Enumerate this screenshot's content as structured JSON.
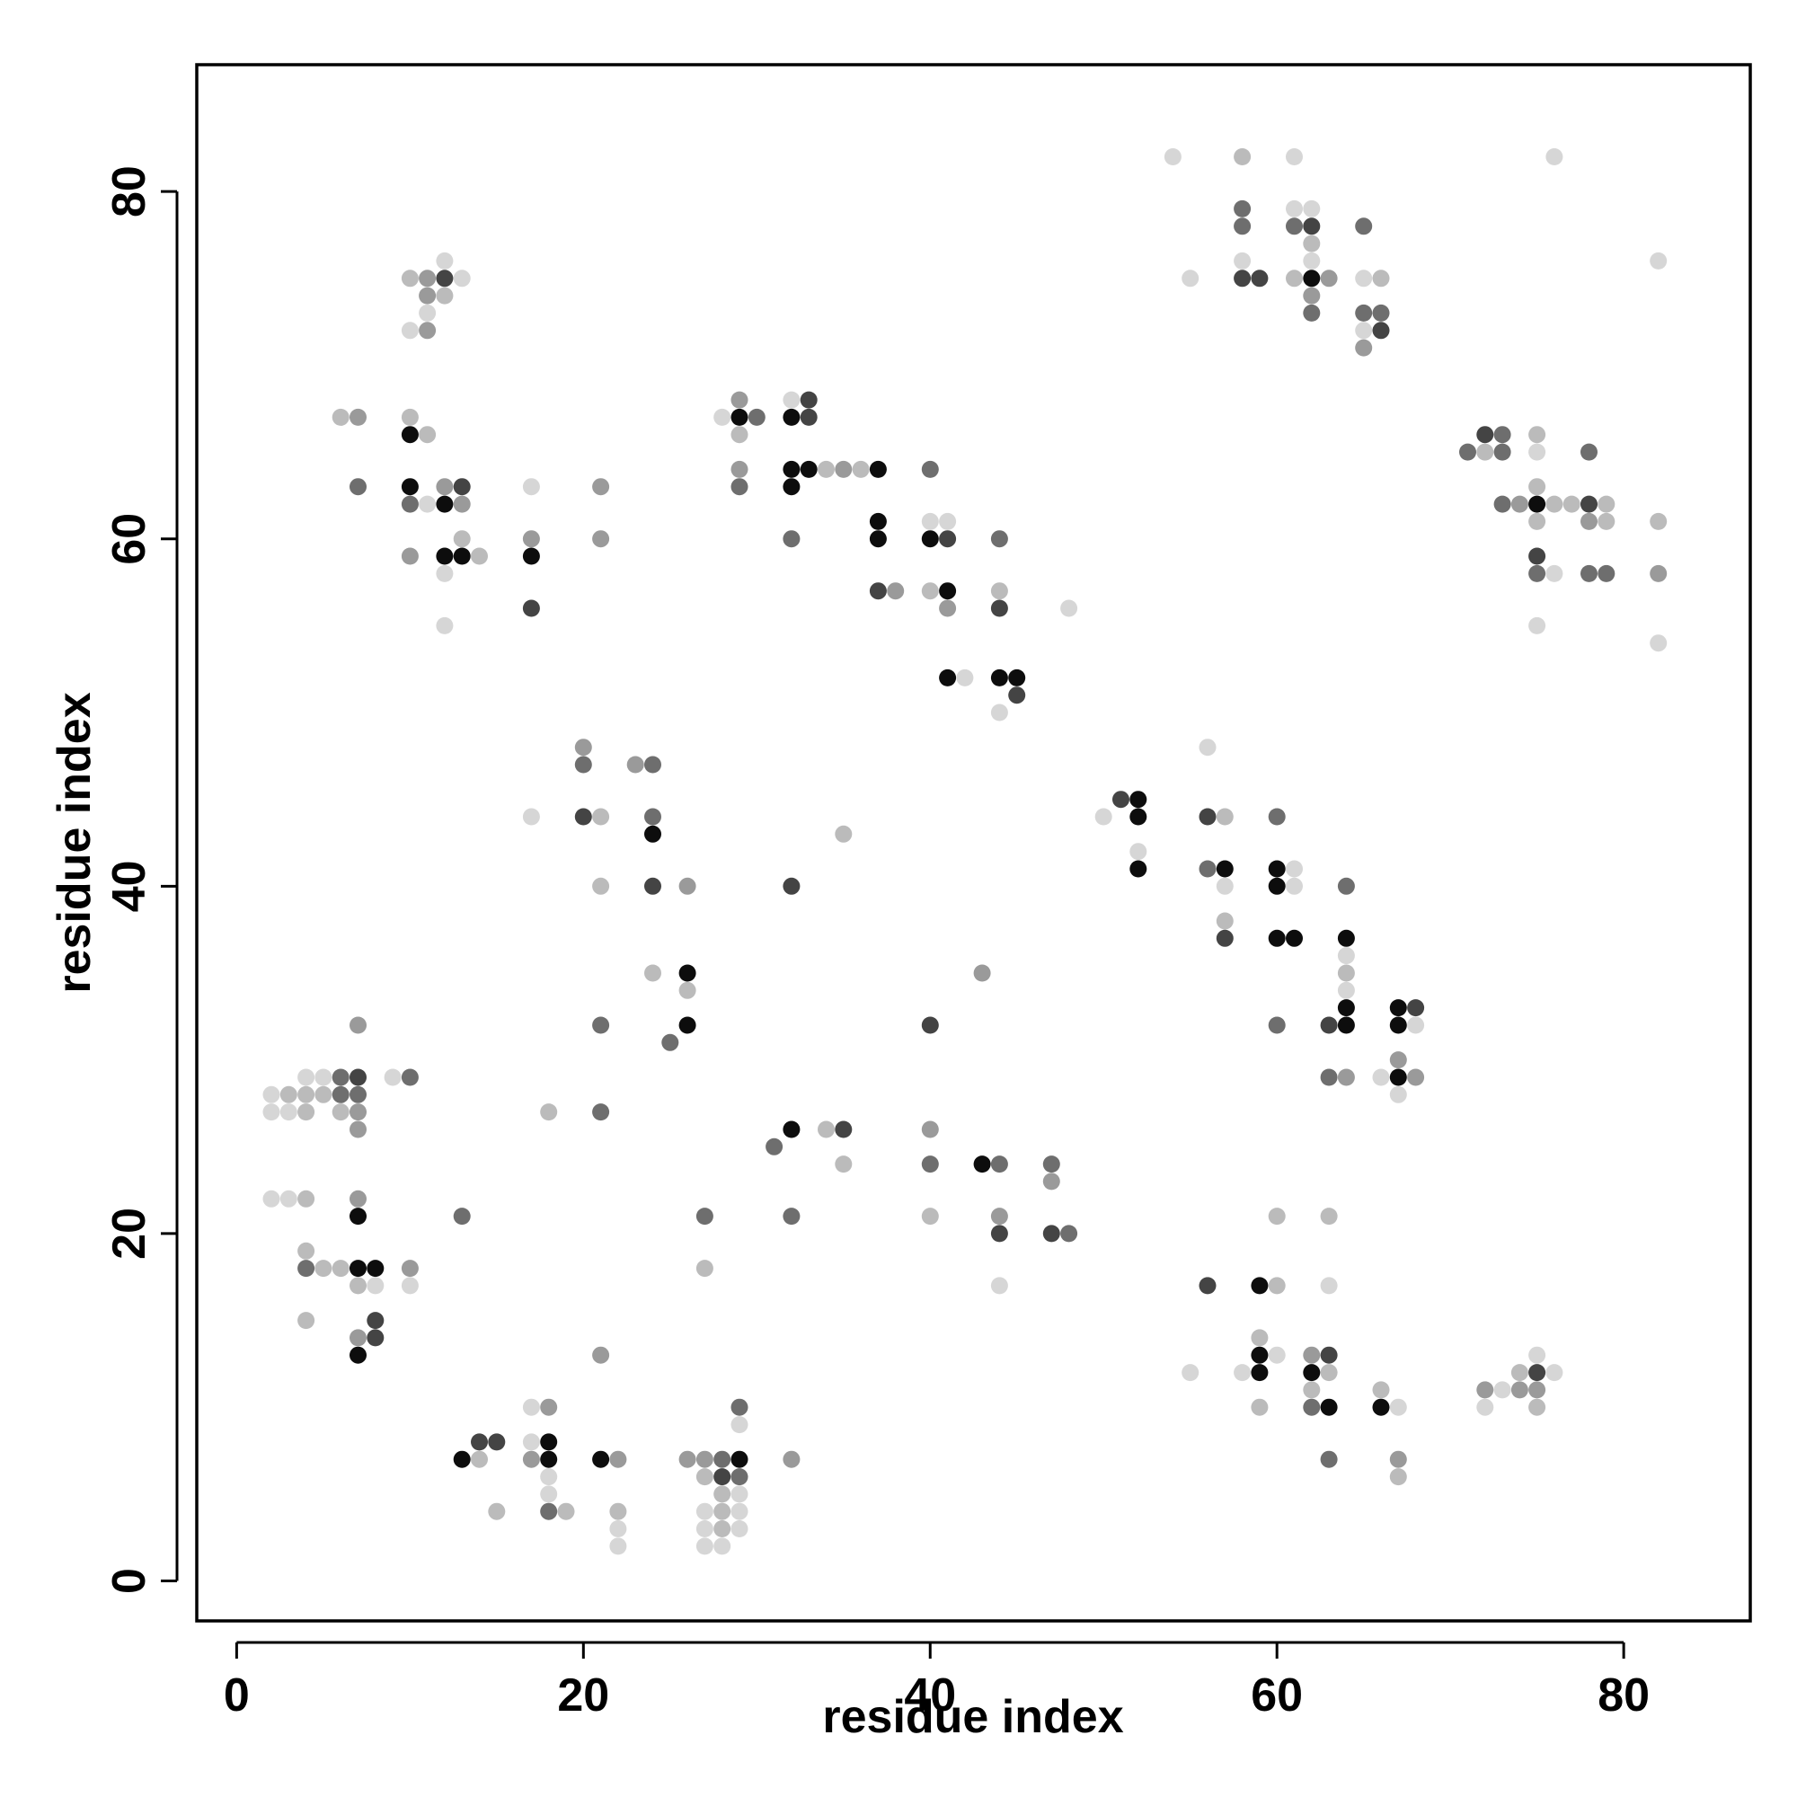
{
  "chart_data": {
    "type": "scatter",
    "title": "",
    "xlabel": "residue index",
    "ylabel": "residue index",
    "xlim": [
      -2.3,
      87.3
    ],
    "ylim": [
      -2.3,
      87.3
    ],
    "x_ticks": [
      0,
      20,
      40,
      60,
      80
    ],
    "y_ticks": [
      0,
      20,
      40,
      60,
      80
    ],
    "grid": false,
    "legend": "none",
    "shade_levels": {
      "1": "#d6d6d6",
      "2": "#bbbbbb",
      "3": "#9a9a9a",
      "4": "#6e6e6e",
      "5": "#444444",
      "6": "#0d0d0d"
    },
    "points": [
      [
        2,
        28,
        1
      ],
      [
        3,
        28,
        2
      ],
      [
        4,
        28,
        2
      ],
      [
        5,
        28,
        2
      ],
      [
        6,
        28,
        4
      ],
      [
        7,
        28,
        4
      ],
      [
        4,
        29,
        1
      ],
      [
        5,
        29,
        1
      ],
      [
        6,
        29,
        4
      ],
      [
        7,
        29,
        5
      ],
      [
        9,
        29,
        1
      ],
      [
        10,
        29,
        4
      ],
      [
        2,
        27,
        1
      ],
      [
        3,
        27,
        1
      ],
      [
        4,
        27,
        2
      ],
      [
        6,
        27,
        2
      ],
      [
        7,
        27,
        3
      ],
      [
        7,
        26,
        3
      ],
      [
        7,
        32,
        3
      ],
      [
        2,
        22,
        1
      ],
      [
        3,
        22,
        1
      ],
      [
        4,
        22,
        2
      ],
      [
        7,
        22,
        3
      ],
      [
        7,
        21,
        6
      ],
      [
        13,
        21,
        4
      ],
      [
        4,
        19,
        2
      ],
      [
        4,
        18,
        4
      ],
      [
        5,
        18,
        2
      ],
      [
        6,
        18,
        2
      ],
      [
        7,
        18,
        6
      ],
      [
        8,
        18,
        6
      ],
      [
        10,
        18,
        3
      ],
      [
        7,
        17,
        2
      ],
      [
        8,
        17,
        1
      ],
      [
        10,
        17,
        1
      ],
      [
        4,
        15,
        2
      ],
      [
        8,
        15,
        5
      ],
      [
        7,
        14,
        3
      ],
      [
        8,
        14,
        5
      ],
      [
        7,
        13,
        6
      ],
      [
        13,
        7,
        6
      ],
      [
        14,
        7,
        2
      ],
      [
        14,
        8,
        5
      ],
      [
        15,
        8,
        5
      ],
      [
        15,
        4,
        2
      ],
      [
        17,
        10,
        1
      ],
      [
        18,
        10,
        3
      ],
      [
        17,
        8,
        1
      ],
      [
        18,
        8,
        6
      ],
      [
        17,
        7,
        3
      ],
      [
        18,
        7,
        6
      ],
      [
        18,
        6,
        1
      ],
      [
        18,
        5,
        1
      ],
      [
        18,
        4,
        4
      ],
      [
        19,
        4,
        2
      ],
      [
        21,
        7,
        6
      ],
      [
        22,
        7,
        3
      ],
      [
        22,
        4,
        2
      ],
      [
        22,
        3,
        1
      ],
      [
        22,
        2,
        1
      ],
      [
        21,
        13,
        3
      ],
      [
        26,
        7,
        3
      ],
      [
        27,
        7,
        3
      ],
      [
        28,
        7,
        4
      ],
      [
        29,
        7,
        6
      ],
      [
        27,
        6,
        2
      ],
      [
        28,
        6,
        5
      ],
      [
        29,
        6,
        4
      ],
      [
        27,
        4,
        1
      ],
      [
        28,
        4,
        2
      ],
      [
        29,
        4,
        1
      ],
      [
        27,
        3,
        1
      ],
      [
        28,
        3,
        2
      ],
      [
        29,
        3,
        1
      ],
      [
        27,
        2,
        1
      ],
      [
        28,
        2,
        1
      ],
      [
        28,
        5,
        2
      ],
      [
        29,
        5,
        1
      ],
      [
        29,
        9,
        1
      ],
      [
        29,
        10,
        4
      ],
      [
        32,
        7,
        3
      ],
      [
        17,
        44,
        1
      ],
      [
        20,
        48,
        3
      ],
      [
        20,
        47,
        4
      ],
      [
        20,
        44,
        5
      ],
      [
        21,
        44,
        2
      ],
      [
        21,
        40,
        2
      ],
      [
        23,
        47,
        3
      ],
      [
        24,
        47,
        4
      ],
      [
        24,
        44,
        4
      ],
      [
        24,
        43,
        6
      ],
      [
        24,
        40,
        5
      ],
      [
        26,
        40,
        3
      ],
      [
        24,
        35,
        2
      ],
      [
        26,
        35,
        6
      ],
      [
        26,
        34,
        2
      ],
      [
        26,
        32,
        6
      ],
      [
        25,
        31,
        4
      ],
      [
        21,
        32,
        4
      ],
      [
        21,
        27,
        4
      ],
      [
        18,
        27,
        2
      ],
      [
        27,
        21,
        4
      ],
      [
        27,
        18,
        2
      ],
      [
        31,
        25,
        4
      ],
      [
        32,
        26,
        6
      ],
      [
        34,
        26,
        2
      ],
      [
        35,
        26,
        5
      ],
      [
        35,
        24,
        2
      ],
      [
        32,
        21,
        4
      ],
      [
        32,
        40,
        5
      ],
      [
        35,
        43,
        2
      ],
      [
        40,
        26,
        3
      ],
      [
        40,
        24,
        4
      ],
      [
        43,
        24,
        6
      ],
      [
        44,
        24,
        4
      ],
      [
        44,
        21,
        3
      ],
      [
        44,
        20,
        5
      ],
      [
        40,
        21,
        2
      ],
      [
        44,
        17,
        1
      ],
      [
        47,
        24,
        4
      ],
      [
        47,
        23,
        3
      ],
      [
        47,
        20,
        5
      ],
      [
        48,
        20,
        4
      ],
      [
        40,
        32,
        5
      ],
      [
        43,
        35,
        3
      ],
      [
        6,
        67,
        2
      ],
      [
        7,
        67,
        3
      ],
      [
        7,
        63,
        4
      ],
      [
        10,
        67,
        2
      ],
      [
        10,
        66,
        6
      ],
      [
        11,
        66,
        2
      ],
      [
        10,
        63,
        6
      ],
      [
        10,
        62,
        4
      ],
      [
        11,
        62,
        1
      ],
      [
        12,
        63,
        3
      ],
      [
        12,
        62,
        6
      ],
      [
        13,
        63,
        5
      ],
      [
        13,
        62,
        3
      ],
      [
        12,
        59,
        6
      ],
      [
        13,
        59,
        6
      ],
      [
        14,
        59,
        2
      ],
      [
        10,
        59,
        3
      ],
      [
        12,
        58,
        1
      ],
      [
        13,
        60,
        2
      ],
      [
        12,
        55,
        1
      ],
      [
        10,
        75,
        2
      ],
      [
        11,
        75,
        3
      ],
      [
        12,
        75,
        5
      ],
      [
        13,
        75,
        1
      ],
      [
        12,
        76,
        1
      ],
      [
        11,
        74,
        3
      ],
      [
        12,
        74,
        2
      ],
      [
        11,
        73,
        1
      ],
      [
        10,
        72,
        1
      ],
      [
        11,
        72,
        3
      ],
      [
        17,
        63,
        1
      ],
      [
        17,
        60,
        3
      ],
      [
        17,
        59,
        6
      ],
      [
        17,
        56,
        5
      ],
      [
        21,
        63,
        3
      ],
      [
        21,
        60,
        3
      ],
      [
        28,
        67,
        1
      ],
      [
        29,
        67,
        6
      ],
      [
        30,
        67,
        4
      ],
      [
        29,
        68,
        3
      ],
      [
        29,
        66,
        2
      ],
      [
        29,
        64,
        3
      ],
      [
        29,
        63,
        4
      ],
      [
        32,
        68,
        1
      ],
      [
        33,
        68,
        5
      ],
      [
        32,
        67,
        6
      ],
      [
        33,
        67,
        5
      ],
      [
        32,
        64,
        6
      ],
      [
        33,
        64,
        6
      ],
      [
        32,
        63,
        6
      ],
      [
        34,
        64,
        2
      ],
      [
        35,
        64,
        3
      ],
      [
        36,
        64,
        2
      ],
      [
        37,
        64,
        6
      ],
      [
        32,
        60,
        4
      ],
      [
        37,
        61,
        6
      ],
      [
        37,
        60,
        6
      ],
      [
        37,
        57,
        5
      ],
      [
        38,
        57,
        3
      ],
      [
        40,
        64,
        4
      ],
      [
        40,
        61,
        1
      ],
      [
        41,
        61,
        1
      ],
      [
        40,
        60,
        6
      ],
      [
        41,
        60,
        5
      ],
      [
        40,
        57,
        2
      ],
      [
        41,
        57,
        6
      ],
      [
        41,
        56,
        3
      ],
      [
        44,
        60,
        4
      ],
      [
        44,
        57,
        2
      ],
      [
        44,
        56,
        5
      ],
      [
        48,
        56,
        1
      ],
      [
        41,
        52,
        6
      ],
      [
        42,
        52,
        1
      ],
      [
        44,
        52,
        6
      ],
      [
        45,
        52,
        6
      ],
      [
        45,
        51,
        5
      ],
      [
        44,
        50,
        1
      ],
      [
        50,
        44,
        1
      ],
      [
        51,
        45,
        5
      ],
      [
        52,
        45,
        6
      ],
      [
        52,
        44,
        6
      ],
      [
        52,
        42,
        1
      ],
      [
        52,
        41,
        6
      ],
      [
        56,
        48,
        1
      ],
      [
        56,
        44,
        5
      ],
      [
        57,
        44,
        2
      ],
      [
        56,
        41,
        4
      ],
      [
        57,
        41,
        6
      ],
      [
        57,
        40,
        1
      ],
      [
        57,
        38,
        2
      ],
      [
        57,
        37,
        5
      ],
      [
        60,
        44,
        4
      ],
      [
        60,
        41,
        6
      ],
      [
        61,
        41,
        1
      ],
      [
        60,
        40,
        6
      ],
      [
        61,
        40,
        1
      ],
      [
        60,
        37,
        6
      ],
      [
        61,
        37,
        6
      ],
      [
        60,
        32,
        4
      ],
      [
        64,
        40,
        4
      ],
      [
        64,
        37,
        6
      ],
      [
        64,
        36,
        1
      ],
      [
        64,
        35,
        2
      ],
      [
        64,
        34,
        1
      ],
      [
        64,
        33,
        6
      ],
      [
        63,
        32,
        5
      ],
      [
        64,
        32,
        6
      ],
      [
        63,
        29,
        4
      ],
      [
        64,
        29,
        3
      ],
      [
        66,
        29,
        1
      ],
      [
        67,
        29,
        6
      ],
      [
        68,
        29,
        3
      ],
      [
        67,
        30,
        3
      ],
      [
        67,
        28,
        1
      ],
      [
        67,
        33,
        6
      ],
      [
        68,
        33,
        5
      ],
      [
        67,
        32,
        6
      ],
      [
        68,
        32,
        1
      ],
      [
        56,
        17,
        5
      ],
      [
        59,
        17,
        6
      ],
      [
        60,
        17,
        2
      ],
      [
        60,
        21,
        2
      ],
      [
        63,
        21,
        2
      ],
      [
        63,
        17,
        1
      ],
      [
        59,
        14,
        2
      ],
      [
        59,
        13,
        6
      ],
      [
        60,
        13,
        1
      ],
      [
        58,
        12,
        1
      ],
      [
        59,
        12,
        6
      ],
      [
        59,
        10,
        2
      ],
      [
        62,
        13,
        3
      ],
      [
        63,
        13,
        5
      ],
      [
        62,
        12,
        6
      ],
      [
        63,
        12,
        2
      ],
      [
        62,
        11,
        2
      ],
      [
        62,
        10,
        4
      ],
      [
        63,
        10,
        6
      ],
      [
        63,
        7,
        4
      ],
      [
        55,
        12,
        1
      ],
      [
        66,
        11,
        2
      ],
      [
        66,
        10,
        6
      ],
      [
        67,
        10,
        1
      ],
      [
        67,
        7,
        3
      ],
      [
        67,
        6,
        2
      ],
      [
        72,
        11,
        3
      ],
      [
        73,
        11,
        1
      ],
      [
        74,
        11,
        3
      ],
      [
        74,
        12,
        2
      ],
      [
        75,
        12,
        5
      ],
      [
        76,
        12,
        1
      ],
      [
        75,
        13,
        1
      ],
      [
        75,
        11,
        3
      ],
      [
        75,
        10,
        2
      ],
      [
        72,
        10,
        1
      ],
      [
        54,
        82,
        1
      ],
      [
        58,
        82,
        2
      ],
      [
        61,
        82,
        1
      ],
      [
        58,
        79,
        4
      ],
      [
        61,
        79,
        1
      ],
      [
        62,
        79,
        1
      ],
      [
        58,
        78,
        4
      ],
      [
        61,
        78,
        4
      ],
      [
        62,
        78,
        5
      ],
      [
        62,
        77,
        2
      ],
      [
        62,
        76,
        1
      ],
      [
        58,
        76,
        1
      ],
      [
        58,
        75,
        5
      ],
      [
        59,
        75,
        5
      ],
      [
        61,
        75,
        2
      ],
      [
        62,
        75,
        6
      ],
      [
        63,
        75,
        3
      ],
      [
        62,
        74,
        3
      ],
      [
        62,
        73,
        4
      ],
      [
        55,
        75,
        1
      ],
      [
        65,
        78,
        4
      ],
      [
        65,
        75,
        1
      ],
      [
        66,
        75,
        2
      ],
      [
        65,
        73,
        4
      ],
      [
        66,
        73,
        4
      ],
      [
        65,
        72,
        1
      ],
      [
        66,
        72,
        5
      ],
      [
        65,
        71,
        3
      ],
      [
        71,
        65,
        4
      ],
      [
        72,
        65,
        2
      ],
      [
        73,
        65,
        4
      ],
      [
        72,
        66,
        5
      ],
      [
        73,
        66,
        4
      ],
      [
        73,
        62,
        4
      ],
      [
        74,
        62,
        3
      ],
      [
        75,
        62,
        6
      ],
      [
        76,
        62,
        2
      ],
      [
        77,
        62,
        2
      ],
      [
        78,
        62,
        5
      ],
      [
        79,
        62,
        2
      ],
      [
        75,
        63,
        2
      ],
      [
        75,
        65,
        1
      ],
      [
        75,
        66,
        2
      ],
      [
        78,
        65,
        4
      ],
      [
        75,
        61,
        2
      ],
      [
        78,
        61,
        3
      ],
      [
        79,
        61,
        2
      ],
      [
        75,
        59,
        5
      ],
      [
        75,
        58,
        4
      ],
      [
        76,
        58,
        1
      ],
      [
        78,
        58,
        4
      ],
      [
        79,
        58,
        4
      ],
      [
        75,
        55,
        1
      ],
      [
        82,
        61,
        2
      ],
      [
        82,
        58,
        3
      ],
      [
        82,
        54,
        1
      ],
      [
        82,
        76,
        1
      ],
      [
        76,
        82,
        1
      ]
    ]
  }
}
